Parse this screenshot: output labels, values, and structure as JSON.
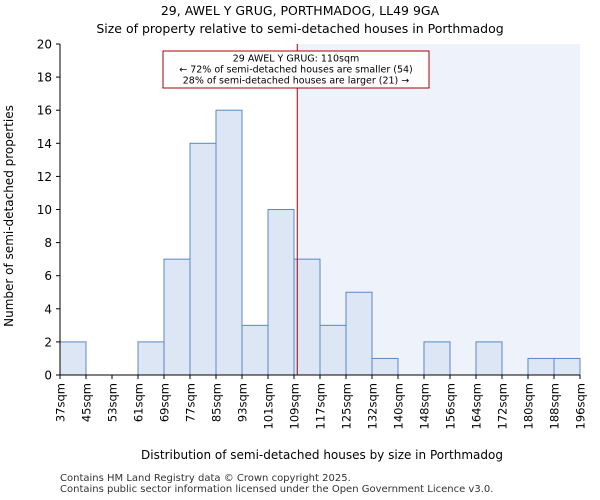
{
  "chart_data": {
    "type": "bar",
    "title": "29, AWEL Y GRUG, PORTHMADOG, LL49 9GA",
    "subtitle": "Size of property relative to semi-detached houses in Porthmadog",
    "xlabel": "Distribution of semi-detached houses by size in Porthmadog",
    "ylabel": "Number of semi-detached properties",
    "bin_edges": [
      37,
      45,
      53,
      61,
      69,
      77,
      85,
      93,
      101,
      109,
      117,
      125,
      132,
      140,
      148,
      156,
      164,
      172,
      180,
      188,
      196
    ],
    "tick_labels": [
      "37sqm",
      "45sqm",
      "53sqm",
      "61sqm",
      "69sqm",
      "77sqm",
      "85sqm",
      "93sqm",
      "101sqm",
      "109sqm",
      "117sqm",
      "125sqm",
      "132sqm",
      "140sqm",
      "148sqm",
      "156sqm",
      "164sqm",
      "172sqm",
      "180sqm",
      "188sqm",
      "196sqm"
    ],
    "values": [
      2,
      0,
      0,
      2,
      7,
      14,
      16,
      3,
      10,
      7,
      3,
      5,
      1,
      0,
      2,
      0,
      2,
      0,
      1,
      1
    ],
    "ylim": [
      0,
      20
    ],
    "yticks": [
      0,
      2,
      4,
      6,
      8,
      10,
      12,
      14,
      16,
      18,
      20
    ],
    "marker_value": 110,
    "annotation": {
      "line1": "29 AWEL Y GRUG: 110sqm",
      "line2": "← 72% of semi-detached houses are smaller (54)",
      "line3": "28% of semi-detached houses are larger (21) →"
    },
    "colors": {
      "bar_fill": "#dce6f5",
      "bar_edge": "#5b87c5",
      "marker": "#aa0000",
      "highlight": "#eef2fb"
    }
  },
  "footer": {
    "line1": "Contains HM Land Registry data © Crown copyright 2025.",
    "line2": "Contains public sector information licensed under the Open Government Licence v3.0."
  }
}
